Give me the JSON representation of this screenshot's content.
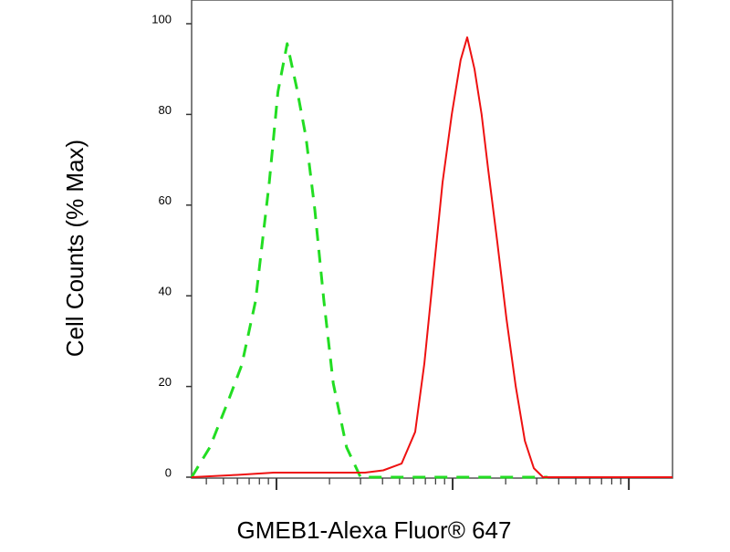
{
  "chart_data": {
    "type": "line",
    "xlabel": "GMEB1-Alexa Fluor® 647",
    "ylabel": "Cell Counts (% Max)",
    "xscale": "log",
    "xlim": [
      330,
      177000
    ],
    "ylim": [
      0,
      100
    ],
    "yticks": [
      0,
      20,
      40,
      60,
      80,
      100
    ],
    "xticks": [
      400,
      500,
      600,
      700,
      800,
      900,
      1000,
      2000,
      3000,
      4000,
      5000,
      6000,
      7000,
      8000,
      9000,
      10000,
      20000,
      30000,
      40000,
      50000,
      60000,
      70000,
      80000,
      90000,
      100000
    ],
    "series": [
      {
        "color": "#22dd22",
        "dash": true,
        "x": [
          330,
          419,
          531,
          635,
          760,
          910,
          1020,
          1150,
          1300,
          1470,
          1650,
          1860,
          2100,
          2500,
          3000,
          34600
        ],
        "values": [
          0,
          6.6,
          16.7,
          24.7,
          38.8,
          65,
          85,
          95.6,
          86,
          75,
          59,
          38.8,
          20.7,
          6.6,
          0,
          0
        ]
      },
      {
        "color": "#ee1111",
        "dash": false,
        "x": [
          330,
          598,
          965,
          1750,
          3180,
          4040,
          5130,
          6130,
          6910,
          7780,
          8770,
          9890,
          11100,
          12100,
          13300,
          14600,
          15900,
          17900,
          20200,
          22800,
          25700,
          28900,
          32600,
          177000
        ],
        "values": [
          0,
          0.5,
          1,
          1,
          1,
          1.5,
          3,
          10,
          25,
          45,
          65,
          80,
          92,
          97,
          90,
          80,
          68,
          52,
          35,
          20,
          8,
          2,
          0,
          0
        ]
      }
    ]
  }
}
